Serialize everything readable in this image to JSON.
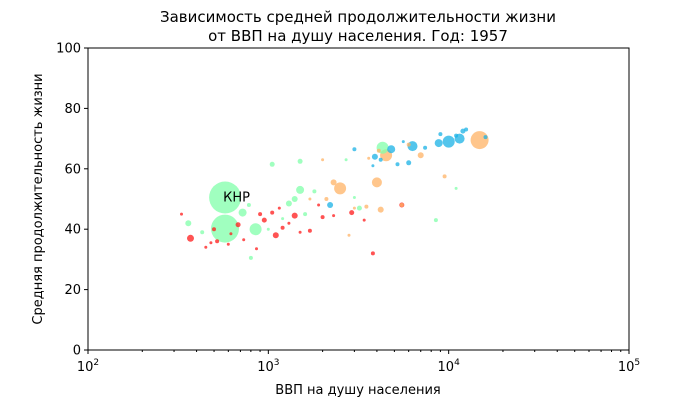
{
  "chart_data": {
    "type": "scatter",
    "title_line1": "Зависимость средней продолжительности жизни",
    "title_line2": "от ВВП на душу населения. Год: 1957",
    "xlabel": "ВВП на душу населения",
    "ylabel": "Средняя продолжительность жизни",
    "x_scale": "log",
    "xlim": [
      100,
      100000
    ],
    "ylim": [
      0,
      100
    ],
    "x_ticks": [
      {
        "value": 100,
        "base": "10",
        "exp": "2"
      },
      {
        "value": 1000,
        "base": "10",
        "exp": "3"
      },
      {
        "value": 10000,
        "base": "10",
        "exp": "4"
      },
      {
        "value": 100000,
        "base": "10",
        "exp": "5"
      }
    ],
    "y_ticks": [
      0,
      20,
      40,
      60,
      80,
      100
    ],
    "grid": false,
    "colors": {
      "Africa": "#ff1a1a",
      "Asia": "#80ffaa",
      "Europe": "#1ab2e6",
      "Americas": "#ffb366"
    },
    "annotation": {
      "text": "КНР",
      "x": 576,
      "y": 50.5
    },
    "points": [
      {
        "x": 576,
        "y": 50.5,
        "r": 16,
        "c": "Asia"
      },
      {
        "x": 575,
        "y": 40.2,
        "r": 14,
        "c": "Asia"
      },
      {
        "x": 14847,
        "y": 69.5,
        "r": 9,
        "c": "Americas"
      },
      {
        "x": 2500,
        "y": 53.5,
        "r": 6,
        "c": "Americas"
      },
      {
        "x": 4000,
        "y": 55.5,
        "r": 5,
        "c": "Americas"
      },
      {
        "x": 4500,
        "y": 64.5,
        "r": 6,
        "c": "Americas"
      },
      {
        "x": 7000,
        "y": 64.5,
        "r": 3,
        "c": "Americas"
      },
      {
        "x": 4200,
        "y": 46.5,
        "r": 3,
        "c": "Americas"
      },
      {
        "x": 2300,
        "y": 55.5,
        "r": 3,
        "c": "Americas"
      },
      {
        "x": 3500,
        "y": 47.5,
        "r": 2,
        "c": "Americas"
      },
      {
        "x": 2100,
        "y": 50.0,
        "r": 2,
        "c": "Americas"
      },
      {
        "x": 2000,
        "y": 63.0,
        "r": 1.5,
        "c": "Americas"
      },
      {
        "x": 3000,
        "y": 47.0,
        "r": 1.5,
        "c": "Americas"
      },
      {
        "x": 5500,
        "y": 48.0,
        "r": 2,
        "c": "Americas"
      },
      {
        "x": 9500,
        "y": 57.5,
        "r": 2,
        "c": "Americas"
      },
      {
        "x": 6000,
        "y": 68.0,
        "r": 2,
        "c": "Americas"
      },
      {
        "x": 1700,
        "y": 50.0,
        "r": 1.5,
        "c": "Americas"
      },
      {
        "x": 3600,
        "y": 63.5,
        "r": 1.5,
        "c": "Americas"
      },
      {
        "x": 2800,
        "y": 38.0,
        "r": 1.5,
        "c": "Americas"
      },
      {
        "x": 4100,
        "y": 66.0,
        "r": 2,
        "c": "Americas"
      },
      {
        "x": 10000,
        "y": 69.0,
        "r": 6,
        "c": "Europe"
      },
      {
        "x": 8800,
        "y": 68.5,
        "r": 4,
        "c": "Europe"
      },
      {
        "x": 6300,
        "y": 67.5,
        "r": 5,
        "c": "Europe"
      },
      {
        "x": 11500,
        "y": 70.0,
        "r": 5,
        "c": "Europe"
      },
      {
        "x": 4800,
        "y": 66.5,
        "r": 4,
        "c": "Europe"
      },
      {
        "x": 3900,
        "y": 64.0,
        "r": 3,
        "c": "Europe"
      },
      {
        "x": 6000,
        "y": 62.0,
        "r": 2.5,
        "c": "Europe"
      },
      {
        "x": 5200,
        "y": 61.5,
        "r": 2,
        "c": "Europe"
      },
      {
        "x": 3000,
        "y": 66.5,
        "r": 2,
        "c": "Europe"
      },
      {
        "x": 2200,
        "y": 48.0,
        "r": 3,
        "c": "Europe"
      },
      {
        "x": 12000,
        "y": 72.5,
        "r": 2.5,
        "c": "Europe"
      },
      {
        "x": 16000,
        "y": 70.5,
        "r": 2,
        "c": "Europe"
      },
      {
        "x": 9000,
        "y": 71.5,
        "r": 2,
        "c": "Europe"
      },
      {
        "x": 11000,
        "y": 71.0,
        "r": 2,
        "c": "Europe"
      },
      {
        "x": 4200,
        "y": 63.0,
        "r": 2,
        "c": "Europe"
      },
      {
        "x": 3800,
        "y": 61.0,
        "r": 1.5,
        "c": "Europe"
      },
      {
        "x": 5600,
        "y": 69.0,
        "r": 1.5,
        "c": "Europe"
      },
      {
        "x": 7400,
        "y": 67.0,
        "r": 2,
        "c": "Europe"
      },
      {
        "x": 12500,
        "y": 73.0,
        "r": 2,
        "c": "Europe"
      },
      {
        "x": 4300,
        "y": 67.0,
        "r": 6,
        "c": "Asia"
      },
      {
        "x": 850,
        "y": 40.0,
        "r": 6,
        "c": "Asia"
      },
      {
        "x": 720,
        "y": 45.5,
        "r": 4,
        "c": "Asia"
      },
      {
        "x": 1500,
        "y": 53.0,
        "r": 4,
        "c": "Asia"
      },
      {
        "x": 1400,
        "y": 50.0,
        "r": 3,
        "c": "Asia"
      },
      {
        "x": 1300,
        "y": 48.5,
        "r": 3,
        "c": "Asia"
      },
      {
        "x": 1050,
        "y": 61.5,
        "r": 2.5,
        "c": "Asia"
      },
      {
        "x": 1500,
        "y": 62.5,
        "r": 2.5,
        "c": "Asia"
      },
      {
        "x": 3200,
        "y": 47.0,
        "r": 2.5,
        "c": "Asia"
      },
      {
        "x": 360,
        "y": 42.0,
        "r": 3,
        "c": "Asia"
      },
      {
        "x": 800,
        "y": 30.5,
        "r": 2,
        "c": "Asia"
      },
      {
        "x": 780,
        "y": 48.0,
        "r": 2,
        "c": "Asia"
      },
      {
        "x": 1800,
        "y": 52.5,
        "r": 2,
        "c": "Asia"
      },
      {
        "x": 8500,
        "y": 43.0,
        "r": 2,
        "c": "Asia"
      },
      {
        "x": 1600,
        "y": 45.0,
        "r": 2,
        "c": "Asia"
      },
      {
        "x": 430,
        "y": 39.0,
        "r": 2,
        "c": "Asia"
      },
      {
        "x": 1200,
        "y": 43.5,
        "r": 1.5,
        "c": "Asia"
      },
      {
        "x": 3000,
        "y": 50.5,
        "r": 1.5,
        "c": "Asia"
      },
      {
        "x": 1000,
        "y": 40.0,
        "r": 1.5,
        "c": "Asia"
      },
      {
        "x": 11000,
        "y": 53.5,
        "r": 1.5,
        "c": "Asia"
      },
      {
        "x": 2700,
        "y": 63.0,
        "r": 1.5,
        "c": "Asia"
      },
      {
        "x": 1100,
        "y": 38.0,
        "r": 3,
        "c": "Africa"
      },
      {
        "x": 1400,
        "y": 44.5,
        "r": 3,
        "c": "Africa"
      },
      {
        "x": 370,
        "y": 37.0,
        "r": 3.5,
        "c": "Africa"
      },
      {
        "x": 520,
        "y": 36.0,
        "r": 2,
        "c": "Africa"
      },
      {
        "x": 680,
        "y": 41.5,
        "r": 2.5,
        "c": "Africa"
      },
      {
        "x": 950,
        "y": 43.0,
        "r": 2.5,
        "c": "Africa"
      },
      {
        "x": 1200,
        "y": 40.5,
        "r": 2,
        "c": "Africa"
      },
      {
        "x": 1700,
        "y": 39.5,
        "r": 2,
        "c": "Africa"
      },
      {
        "x": 2000,
        "y": 44.0,
        "r": 2,
        "c": "Africa"
      },
      {
        "x": 2900,
        "y": 45.5,
        "r": 2.5,
        "c": "Africa"
      },
      {
        "x": 5500,
        "y": 48.0,
        "r": 2.5,
        "c": "Africa"
      },
      {
        "x": 3800,
        "y": 32.0,
        "r": 2,
        "c": "Africa"
      },
      {
        "x": 900,
        "y": 45.0,
        "r": 2,
        "c": "Africa"
      },
      {
        "x": 1050,
        "y": 45.5,
        "r": 2,
        "c": "Africa"
      },
      {
        "x": 600,
        "y": 35.0,
        "r": 1.5,
        "c": "Africa"
      },
      {
        "x": 450,
        "y": 34.0,
        "r": 1.5,
        "c": "Africa"
      },
      {
        "x": 500,
        "y": 40.0,
        "r": 2,
        "c": "Africa"
      },
      {
        "x": 730,
        "y": 36.5,
        "r": 1.5,
        "c": "Africa"
      },
      {
        "x": 1300,
        "y": 42.0,
        "r": 1.5,
        "c": "Africa"
      },
      {
        "x": 2300,
        "y": 44.5,
        "r": 1.5,
        "c": "Africa"
      },
      {
        "x": 3400,
        "y": 43.0,
        "r": 1.5,
        "c": "Africa"
      },
      {
        "x": 1500,
        "y": 39.0,
        "r": 1.5,
        "c": "Africa"
      },
      {
        "x": 330,
        "y": 45.0,
        "r": 1.5,
        "c": "Africa"
      },
      {
        "x": 620,
        "y": 38.5,
        "r": 1.5,
        "c": "Africa"
      },
      {
        "x": 860,
        "y": 33.5,
        "r": 1.5,
        "c": "Africa"
      },
      {
        "x": 1900,
        "y": 48.0,
        "r": 1.5,
        "c": "Africa"
      },
      {
        "x": 480,
        "y": 35.5,
        "r": 1.5,
        "c": "Africa"
      },
      {
        "x": 1150,
        "y": 47.0,
        "r": 1.5,
        "c": "Africa"
      }
    ]
  }
}
